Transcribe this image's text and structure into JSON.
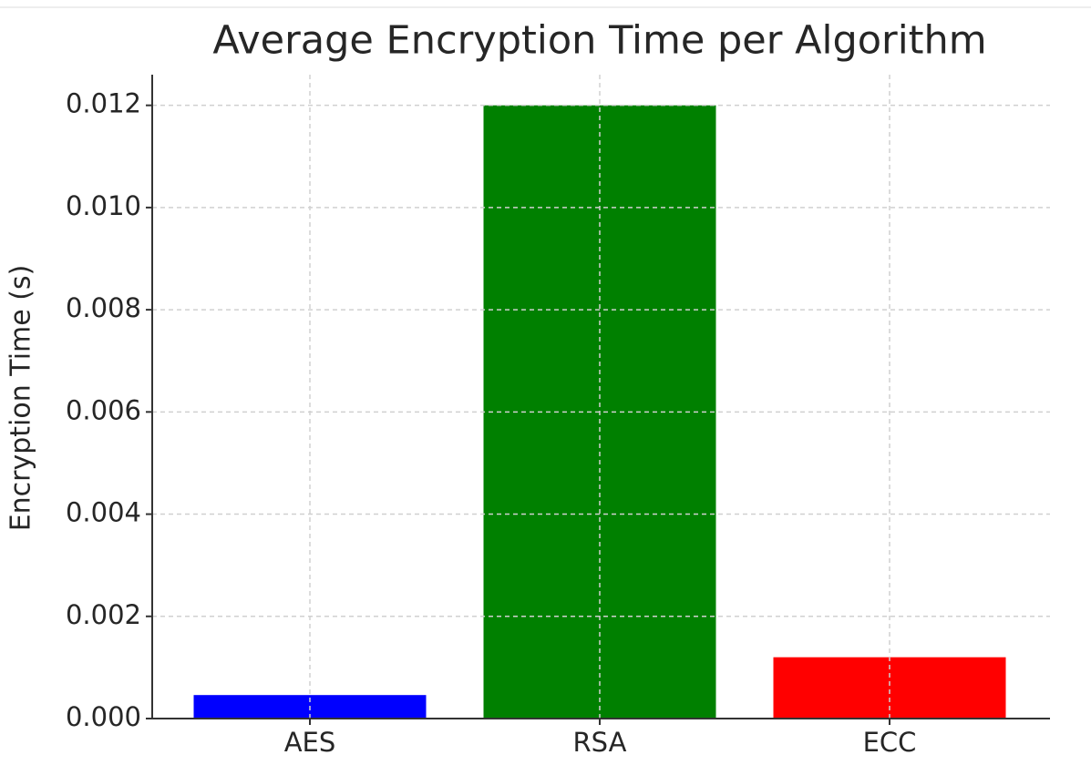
{
  "chart_data": {
    "type": "bar",
    "title": "Average Encryption Time per Algorithm",
    "y_label": "Encryption Time (s)",
    "categories": [
      "AES",
      "RSA",
      "ECC"
    ],
    "values": [
      0.00046,
      0.012,
      0.0012
    ],
    "colors": [
      "#0000ff",
      "#008000",
      "#ff0000"
    ],
    "ylim": [
      0,
      0.0126
    ],
    "yticks": [
      {
        "value": 0,
        "label": "0.000"
      },
      0.002,
      0.004,
      0.006,
      0.008,
      {
        "value": 0.01,
        "label": "0.010"
      },
      0.012
    ],
    "grid": true
  }
}
